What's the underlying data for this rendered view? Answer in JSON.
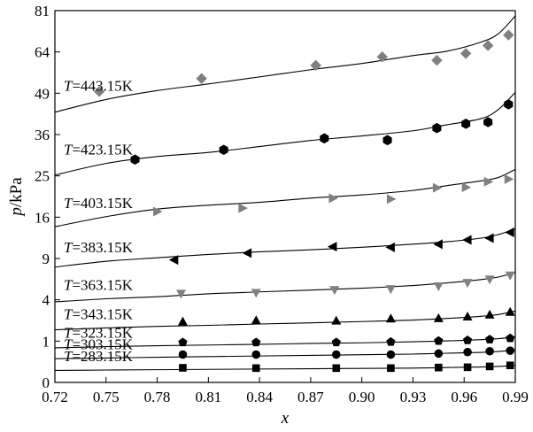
{
  "chart_data": {
    "type": "scatter",
    "title": "",
    "xlabel": "x",
    "ylabel": "p/kPa",
    "xlim": [
      0.72,
      0.99
    ],
    "ylim": [
      0,
      81
    ],
    "y_scale": "sqrt",
    "grid": false,
    "x_ticks": [
      "0.72",
      "0.75",
      "0.78",
      "0.81",
      "0.84",
      "0.87",
      "0.90",
      "0.93",
      "0.96",
      "0.99"
    ],
    "y_ticks": [
      "0",
      "1",
      "4",
      "9",
      "16",
      "25",
      "36",
      "49",
      "64",
      "81"
    ],
    "series": [
      {
        "name": "T=443.15K",
        "label_prefix": "T",
        "label_rest": "=443.15K",
        "marker": "diamond",
        "color": "#808080",
        "x": [
          0.746,
          0.806,
          0.873,
          0.912,
          0.944,
          0.961,
          0.974,
          0.986
        ],
        "y": [
          49.6,
          54.1,
          58.9,
          62.1,
          60.8,
          63.4,
          66.5,
          70.7
        ],
        "fit_x": [
          0.72,
          0.75,
          0.78,
          0.81,
          0.84,
          0.87,
          0.9,
          0.93,
          0.95,
          0.97,
          0.98,
          0.99
        ],
        "fit_y": [
          42.8,
          46.9,
          49.9,
          52.2,
          54.7,
          57.3,
          59.6,
          62.6,
          64.3,
          67.9,
          71.2,
          78.7
        ]
      },
      {
        "name": "T=423.15K",
        "label_prefix": "T",
        "label_rest": "=423.15K",
        "marker": "hexagon",
        "color": "#000000",
        "x": [
          0.767,
          0.819,
          0.878,
          0.915,
          0.944,
          0.961,
          0.974,
          0.986
        ],
        "y": [
          29.1,
          31.7,
          34.9,
          34.4,
          37.9,
          39.2,
          39.7,
          45.3
        ],
        "fit_x": [
          0.72,
          0.75,
          0.78,
          0.81,
          0.84,
          0.87,
          0.9,
          0.93,
          0.95,
          0.97,
          0.98,
          0.99
        ],
        "fit_y": [
          25.2,
          28.1,
          29.9,
          31.0,
          32.6,
          34.3,
          35.6,
          37.1,
          38.9,
          40.8,
          43.6,
          49.3
        ]
      },
      {
        "name": "T=403.15K",
        "label_prefix": "T",
        "label_rest": "=403.15K",
        "marker": "triangle-right",
        "color": "#808080",
        "x": [
          0.78,
          0.83,
          0.883,
          0.917,
          0.944,
          0.961,
          0.974,
          0.986
        ],
        "y": [
          17.1,
          17.8,
          19.9,
          19.7,
          22.2,
          22.3,
          23.6,
          24.2
        ],
        "fit_x": [
          0.72,
          0.75,
          0.78,
          0.81,
          0.84,
          0.87,
          0.9,
          0.93,
          0.95,
          0.97,
          0.98,
          0.99
        ],
        "fit_y": [
          14.2,
          16.1,
          17.6,
          18.4,
          19.0,
          19.9,
          20.6,
          21.6,
          22.7,
          23.8,
          24.6,
          26.6
        ]
      },
      {
        "name": "T=383.15K",
        "label_prefix": "T",
        "label_rest": "=383.15K",
        "marker": "triangle-left",
        "color": "#000000",
        "x": [
          0.79,
          0.833,
          0.883,
          0.917,
          0.945,
          0.962,
          0.975,
          0.987
        ],
        "y": [
          8.8,
          9.8,
          10.8,
          10.7,
          11.2,
          11.9,
          12.2,
          13.2
        ],
        "fit_x": [
          0.72,
          0.75,
          0.78,
          0.81,
          0.84,
          0.87,
          0.9,
          0.93,
          0.95,
          0.97,
          0.98,
          0.99
        ],
        "fit_y": [
          7.8,
          8.6,
          9.1,
          9.6,
          10.0,
          10.3,
          10.7,
          11.2,
          11.6,
          12.2,
          12.8,
          13.8
        ]
      },
      {
        "name": "T=363.15K",
        "label_prefix": "T",
        "label_rest": "=363.15K",
        "marker": "triangle-down",
        "color": "#808080",
        "x": [
          0.794,
          0.838,
          0.884,
          0.917,
          0.945,
          0.962,
          0.975,
          0.987
        ],
        "y": [
          4.6,
          4.7,
          5.0,
          5.1,
          5.4,
          5.8,
          6.2,
          6.7
        ],
        "fit_x": [
          0.72,
          0.75,
          0.78,
          0.81,
          0.84,
          0.87,
          0.9,
          0.93,
          0.95,
          0.97,
          0.98,
          0.99
        ],
        "fit_y": [
          3.8,
          4.1,
          4.3,
          4.6,
          4.8,
          5.0,
          5.2,
          5.5,
          5.8,
          6.2,
          6.5,
          7.1
        ]
      },
      {
        "name": "T=343.15K",
        "label_prefix": "T",
        "label_rest": "=343.15K",
        "marker": "triangle-up",
        "color": "#000000",
        "x": [
          0.795,
          0.838,
          0.885,
          0.917,
          0.945,
          0.962,
          0.975,
          0.987
        ],
        "y": [
          2.18,
          2.27,
          2.24,
          2.4,
          2.42,
          2.55,
          2.7,
          2.92
        ],
        "fit_x": [
          0.72,
          0.75,
          0.78,
          0.81,
          0.84,
          0.87,
          0.9,
          0.93,
          0.95,
          0.97,
          0.98,
          0.99
        ],
        "fit_y": [
          1.62,
          1.74,
          1.84,
          1.91,
          2.0,
          2.08,
          2.17,
          2.28,
          2.4,
          2.56,
          2.7,
          2.98
        ]
      },
      {
        "name": "T=323.15K",
        "label_prefix": "T",
        "label_rest": "=323.15K",
        "marker": "pentagon",
        "color": "#000000",
        "x": [
          0.795,
          0.838,
          0.885,
          0.917,
          0.945,
          0.962,
          0.975,
          0.987
        ],
        "y": [
          0.94,
          0.94,
          0.94,
          0.96,
          1.01,
          1.04,
          1.08,
          1.14
        ],
        "fit_x": [
          0.72,
          0.75,
          0.78,
          0.81,
          0.84,
          0.87,
          0.9,
          0.93,
          0.95,
          0.97,
          0.98,
          0.99
        ],
        "fit_y": [
          0.7,
          0.75,
          0.79,
          0.82,
          0.85,
          0.89,
          0.92,
          0.97,
          1.01,
          1.07,
          1.12,
          1.22
        ]
      },
      {
        "name": "T=303.15K",
        "label_prefix": "T",
        "label_rest": "=303.15K",
        "marker": "circle",
        "color": "#000000",
        "x": [
          0.795,
          0.838,
          0.885,
          0.917,
          0.945,
          0.962,
          0.975,
          0.987
        ],
        "y": [
          0.455,
          0.455,
          0.455,
          0.455,
          0.49,
          0.54,
          0.57,
          0.59
        ],
        "fit_x": [
          0.72,
          0.75,
          0.78,
          0.81,
          0.84,
          0.87,
          0.9,
          0.93,
          0.95,
          0.97,
          0.98,
          0.99
        ],
        "fit_y": [
          0.33,
          0.35,
          0.37,
          0.39,
          0.41,
          0.43,
          0.45,
          0.47,
          0.5,
          0.53,
          0.56,
          0.62
        ]
      },
      {
        "name": "T=283.15K",
        "label_prefix": "T",
        "label_rest": "=283.15K",
        "marker": "square",
        "color": "#000000",
        "x": [
          0.795,
          0.838,
          0.885,
          0.917,
          0.945,
          0.962,
          0.975,
          0.987
        ],
        "y": [
          0.125,
          0.12,
          0.12,
          0.12,
          0.13,
          0.135,
          0.15,
          0.17
        ],
        "fit_x": [
          0.72,
          0.75,
          0.78,
          0.81,
          0.84,
          0.87,
          0.9,
          0.93,
          0.95,
          0.97,
          0.98,
          0.99
        ],
        "fit_y": [
          0.085,
          0.09,
          0.095,
          0.1,
          0.105,
          0.11,
          0.115,
          0.12,
          0.13,
          0.14,
          0.15,
          0.17
        ]
      }
    ]
  }
}
